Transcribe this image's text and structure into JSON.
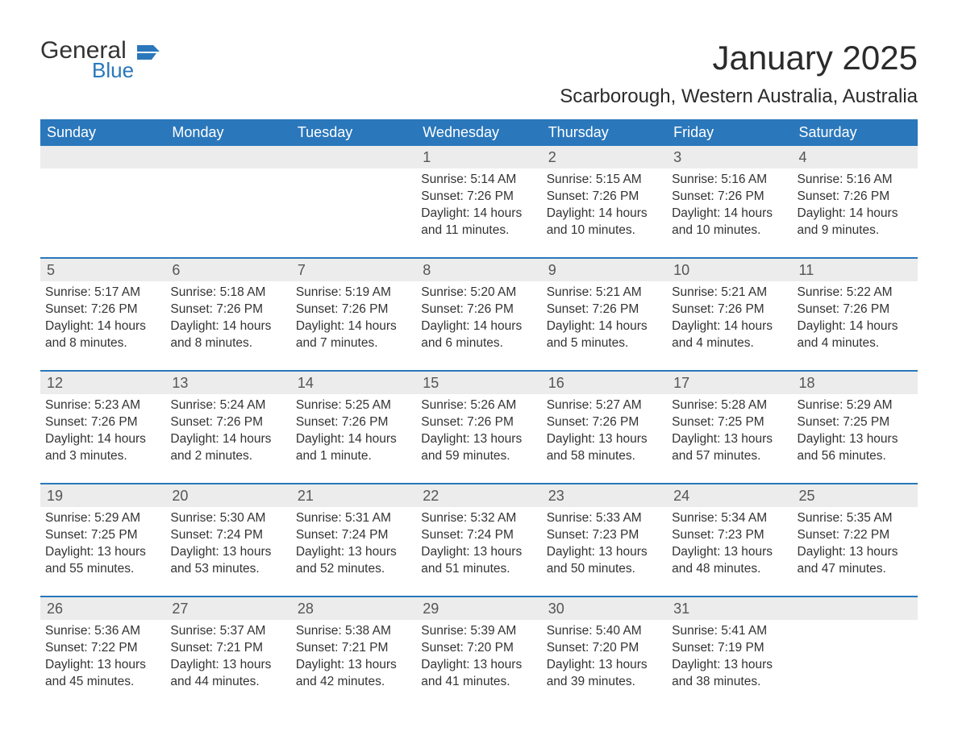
{
  "logo": {
    "word1": "General",
    "word2": "Blue",
    "flag_color": "#2a77bb",
    "text_dark": "#333333"
  },
  "title": "January 2025",
  "subtitle": "Scarborough, Western Australia, Australia",
  "colors": {
    "header_bg": "#2a77bb",
    "header_text": "#ffffff",
    "row_separator": "#2a77bb",
    "daynum_bg": "#ececec",
    "body_text": "#333333",
    "page_bg": "#ffffff"
  },
  "fonts": {
    "title_size_pt": 32,
    "subtitle_size_pt": 18,
    "header_size_pt": 14,
    "cell_size_pt": 12,
    "daynum_size_pt": 14
  },
  "weekdays": [
    "Sunday",
    "Monday",
    "Tuesday",
    "Wednesday",
    "Thursday",
    "Friday",
    "Saturday"
  ],
  "weeks": [
    [
      null,
      null,
      null,
      {
        "day": "1",
        "sunrise": "Sunrise: 5:14 AM",
        "sunset": "Sunset: 7:26 PM",
        "daylight": "Daylight: 14 hours and 11 minutes."
      },
      {
        "day": "2",
        "sunrise": "Sunrise: 5:15 AM",
        "sunset": "Sunset: 7:26 PM",
        "daylight": "Daylight: 14 hours and 10 minutes."
      },
      {
        "day": "3",
        "sunrise": "Sunrise: 5:16 AM",
        "sunset": "Sunset: 7:26 PM",
        "daylight": "Daylight: 14 hours and 10 minutes."
      },
      {
        "day": "4",
        "sunrise": "Sunrise: 5:16 AM",
        "sunset": "Sunset: 7:26 PM",
        "daylight": "Daylight: 14 hours and 9 minutes."
      }
    ],
    [
      {
        "day": "5",
        "sunrise": "Sunrise: 5:17 AM",
        "sunset": "Sunset: 7:26 PM",
        "daylight": "Daylight: 14 hours and 8 minutes."
      },
      {
        "day": "6",
        "sunrise": "Sunrise: 5:18 AM",
        "sunset": "Sunset: 7:26 PM",
        "daylight": "Daylight: 14 hours and 8 minutes."
      },
      {
        "day": "7",
        "sunrise": "Sunrise: 5:19 AM",
        "sunset": "Sunset: 7:26 PM",
        "daylight": "Daylight: 14 hours and 7 minutes."
      },
      {
        "day": "8",
        "sunrise": "Sunrise: 5:20 AM",
        "sunset": "Sunset: 7:26 PM",
        "daylight": "Daylight: 14 hours and 6 minutes."
      },
      {
        "day": "9",
        "sunrise": "Sunrise: 5:21 AM",
        "sunset": "Sunset: 7:26 PM",
        "daylight": "Daylight: 14 hours and 5 minutes."
      },
      {
        "day": "10",
        "sunrise": "Sunrise: 5:21 AM",
        "sunset": "Sunset: 7:26 PM",
        "daylight": "Daylight: 14 hours and 4 minutes."
      },
      {
        "day": "11",
        "sunrise": "Sunrise: 5:22 AM",
        "sunset": "Sunset: 7:26 PM",
        "daylight": "Daylight: 14 hours and 4 minutes."
      }
    ],
    [
      {
        "day": "12",
        "sunrise": "Sunrise: 5:23 AM",
        "sunset": "Sunset: 7:26 PM",
        "daylight": "Daylight: 14 hours and 3 minutes."
      },
      {
        "day": "13",
        "sunrise": "Sunrise: 5:24 AM",
        "sunset": "Sunset: 7:26 PM",
        "daylight": "Daylight: 14 hours and 2 minutes."
      },
      {
        "day": "14",
        "sunrise": "Sunrise: 5:25 AM",
        "sunset": "Sunset: 7:26 PM",
        "daylight": "Daylight: 14 hours and 1 minute."
      },
      {
        "day": "15",
        "sunrise": "Sunrise: 5:26 AM",
        "sunset": "Sunset: 7:26 PM",
        "daylight": "Daylight: 13 hours and 59 minutes."
      },
      {
        "day": "16",
        "sunrise": "Sunrise: 5:27 AM",
        "sunset": "Sunset: 7:26 PM",
        "daylight": "Daylight: 13 hours and 58 minutes."
      },
      {
        "day": "17",
        "sunrise": "Sunrise: 5:28 AM",
        "sunset": "Sunset: 7:25 PM",
        "daylight": "Daylight: 13 hours and 57 minutes."
      },
      {
        "day": "18",
        "sunrise": "Sunrise: 5:29 AM",
        "sunset": "Sunset: 7:25 PM",
        "daylight": "Daylight: 13 hours and 56 minutes."
      }
    ],
    [
      {
        "day": "19",
        "sunrise": "Sunrise: 5:29 AM",
        "sunset": "Sunset: 7:25 PM",
        "daylight": "Daylight: 13 hours and 55 minutes."
      },
      {
        "day": "20",
        "sunrise": "Sunrise: 5:30 AM",
        "sunset": "Sunset: 7:24 PM",
        "daylight": "Daylight: 13 hours and 53 minutes."
      },
      {
        "day": "21",
        "sunrise": "Sunrise: 5:31 AM",
        "sunset": "Sunset: 7:24 PM",
        "daylight": "Daylight: 13 hours and 52 minutes."
      },
      {
        "day": "22",
        "sunrise": "Sunrise: 5:32 AM",
        "sunset": "Sunset: 7:24 PM",
        "daylight": "Daylight: 13 hours and 51 minutes."
      },
      {
        "day": "23",
        "sunrise": "Sunrise: 5:33 AM",
        "sunset": "Sunset: 7:23 PM",
        "daylight": "Daylight: 13 hours and 50 minutes."
      },
      {
        "day": "24",
        "sunrise": "Sunrise: 5:34 AM",
        "sunset": "Sunset: 7:23 PM",
        "daylight": "Daylight: 13 hours and 48 minutes."
      },
      {
        "day": "25",
        "sunrise": "Sunrise: 5:35 AM",
        "sunset": "Sunset: 7:22 PM",
        "daylight": "Daylight: 13 hours and 47 minutes."
      }
    ],
    [
      {
        "day": "26",
        "sunrise": "Sunrise: 5:36 AM",
        "sunset": "Sunset: 7:22 PM",
        "daylight": "Daylight: 13 hours and 45 minutes."
      },
      {
        "day": "27",
        "sunrise": "Sunrise: 5:37 AM",
        "sunset": "Sunset: 7:21 PM",
        "daylight": "Daylight: 13 hours and 44 minutes."
      },
      {
        "day": "28",
        "sunrise": "Sunrise: 5:38 AM",
        "sunset": "Sunset: 7:21 PM",
        "daylight": "Daylight: 13 hours and 42 minutes."
      },
      {
        "day": "29",
        "sunrise": "Sunrise: 5:39 AM",
        "sunset": "Sunset: 7:20 PM",
        "daylight": "Daylight: 13 hours and 41 minutes."
      },
      {
        "day": "30",
        "sunrise": "Sunrise: 5:40 AM",
        "sunset": "Sunset: 7:20 PM",
        "daylight": "Daylight: 13 hours and 39 minutes."
      },
      {
        "day": "31",
        "sunrise": "Sunrise: 5:41 AM",
        "sunset": "Sunset: 7:19 PM",
        "daylight": "Daylight: 13 hours and 38 minutes."
      },
      null
    ]
  ]
}
